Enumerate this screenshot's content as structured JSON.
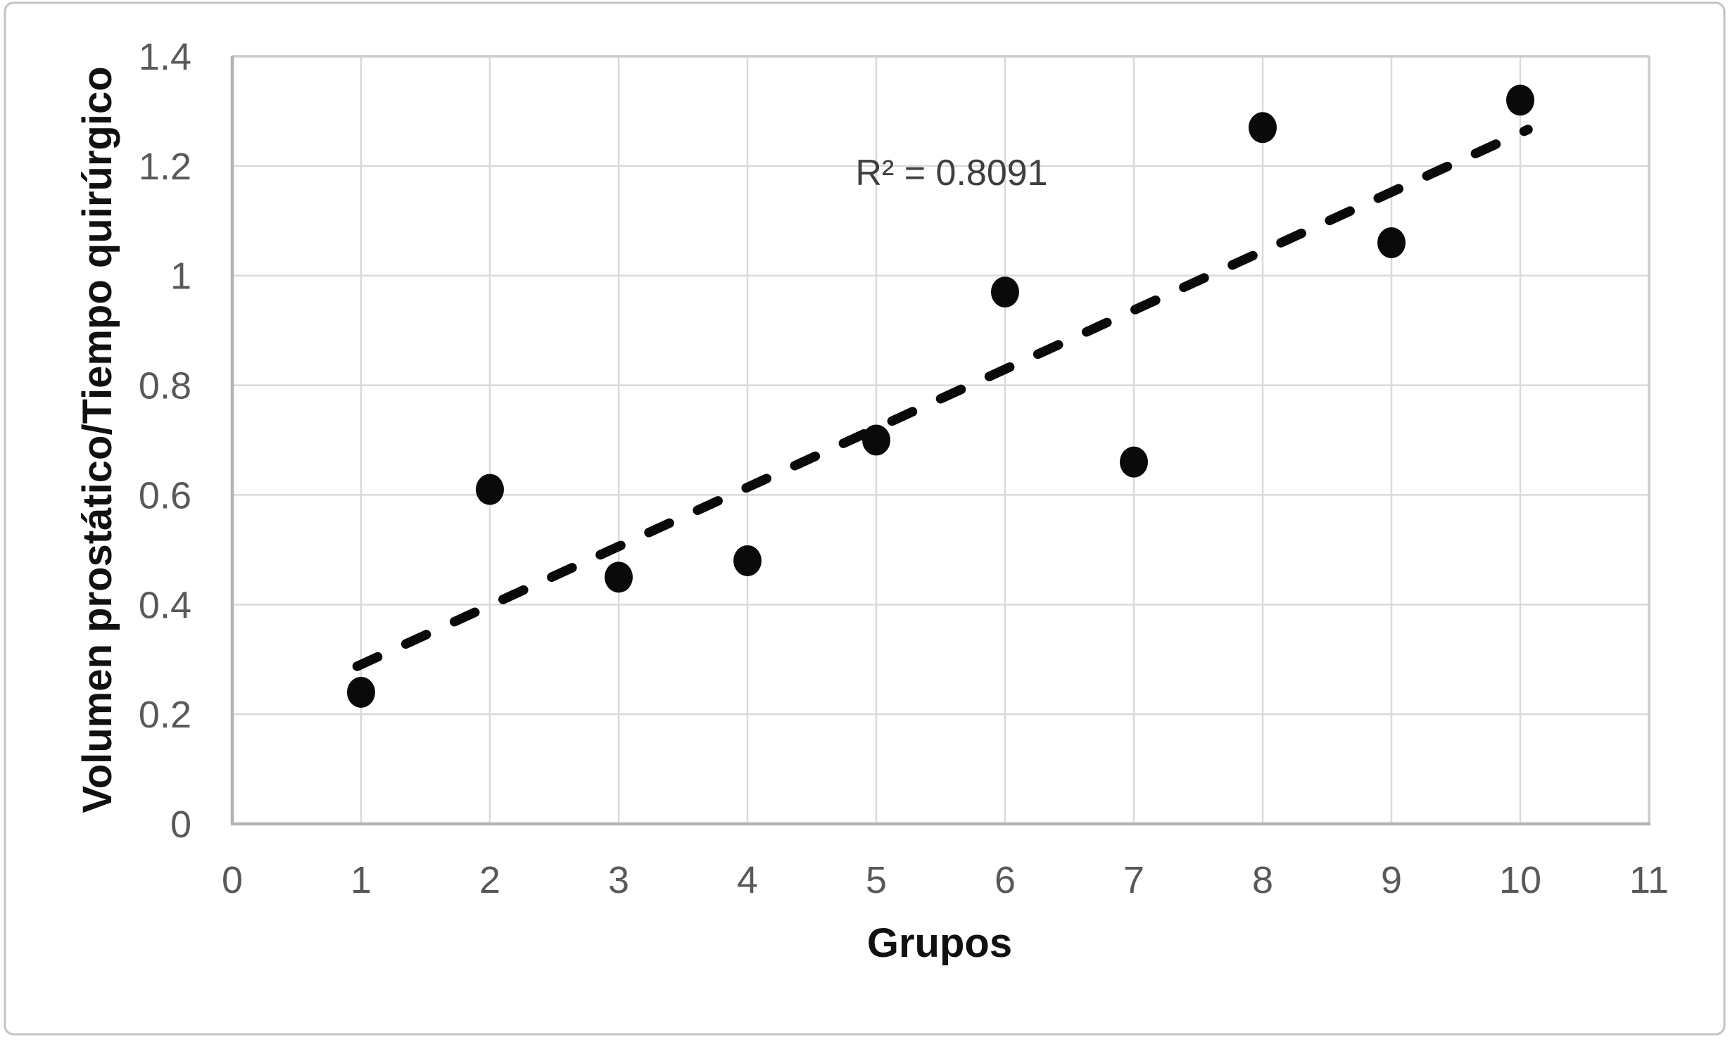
{
  "chart_data": {
    "type": "scatter",
    "title": "",
    "xlabel": "Grupos",
    "ylabel": "Volumen prostático/Tiempo quirúrgico",
    "annotation": "R² = 0.8091",
    "x": [
      1,
      2,
      3,
      4,
      5,
      6,
      7,
      8,
      9,
      10
    ],
    "y": [
      0.24,
      0.61,
      0.45,
      0.48,
      0.7,
      0.97,
      0.66,
      1.27,
      1.06,
      1.32
    ],
    "xlim": [
      0,
      11
    ],
    "ylim": [
      0,
      1.4
    ],
    "xtick_values": [
      0,
      1,
      2,
      3,
      4,
      5,
      6,
      7,
      8,
      9,
      10,
      11
    ],
    "xtick_labels": [
      "0",
      "1",
      "2",
      "3",
      "4",
      "5",
      "6",
      "7",
      "8",
      "9",
      "10",
      "11"
    ],
    "ytick_values": [
      0,
      0.2,
      0.4,
      0.6,
      0.8,
      1,
      1.2,
      1.4
    ],
    "ytick_labels": [
      "0",
      "0.2",
      "0.4",
      "0.6",
      "0.8",
      "1",
      "1.2",
      "1.4"
    ],
    "grid": true,
    "legend": "none",
    "marker": "filled-black-circle",
    "trendline": {
      "style": "dashed",
      "slope": 0.1077,
      "intercept": 0.183,
      "x_start": 0.97,
      "x_end": 10.06,
      "r_squared": 0.8091
    },
    "colors": {
      "point": "#0a0a0a",
      "trendline": "#0a0a0a",
      "gridline": "#d9d9d9",
      "plot_border": "#cccccc",
      "axis_line": "#b3b3b3",
      "tick_label": "#595959",
      "annotation": "#3f3f3f",
      "axis_title": "#111111",
      "background": "#ffffff",
      "outer_border": "#c4c4c4"
    }
  }
}
